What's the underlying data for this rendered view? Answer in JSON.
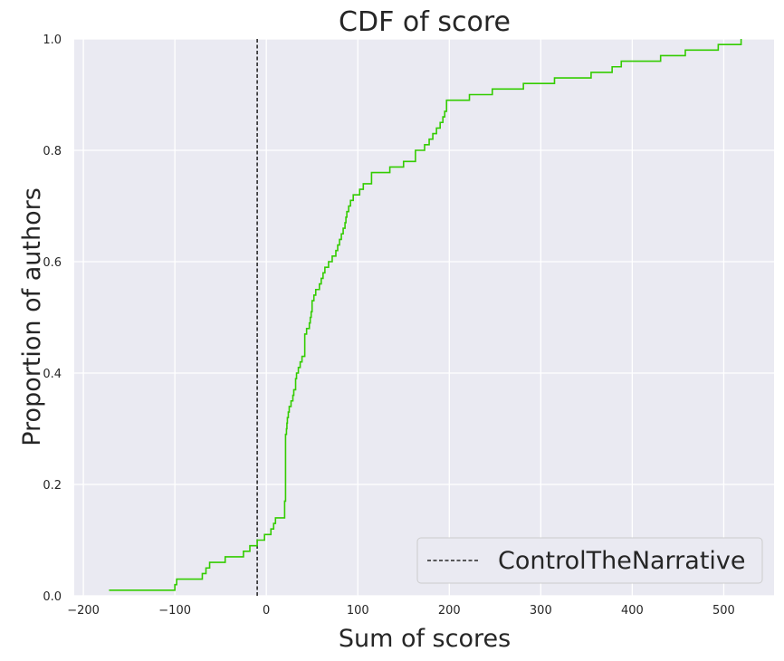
{
  "chart_data": {
    "type": "line",
    "title": "CDF of score",
    "xlabel": "Sum of scores",
    "ylabel": "Proportion of authors",
    "xlim": [
      -210,
      555
    ],
    "ylim": [
      0,
      1.0
    ],
    "xticks": [
      -200,
      -100,
      0,
      100,
      200,
      300,
      400,
      500
    ],
    "xtick_labels": [
      "−200",
      "−100",
      "0",
      "100",
      "200",
      "300",
      "400",
      "500"
    ],
    "yticks": [
      0.0,
      0.2,
      0.4,
      0.6,
      0.8,
      1.0
    ],
    "ytick_labels": [
      "0.0",
      "0.2",
      "0.4",
      "0.6",
      "0.8",
      "1.0"
    ],
    "grid": true,
    "legend_position": "lower-right",
    "series": [
      {
        "kind": "step-cdf",
        "color": "#33cc00",
        "x": [
          -172,
          -100,
          -98,
          -70,
          -66,
          -62,
          -45,
          -25,
          -18,
          -10,
          -2,
          5,
          8,
          10,
          20,
          21,
          22,
          22.5,
          23,
          24,
          25,
          27,
          29,
          30,
          32,
          33,
          35,
          37,
          39,
          42,
          44,
          47,
          48,
          49,
          50,
          52,
          54,
          58,
          60,
          62,
          64,
          68,
          72,
          76,
          78,
          80,
          82,
          84,
          86,
          87,
          88,
          90,
          92,
          95,
          102,
          106,
          115,
          135,
          150,
          163,
          173,
          178,
          182,
          186,
          190,
          193,
          195,
          197,
          222,
          247,
          281,
          315,
          355,
          378,
          388,
          431,
          458,
          494,
          519
        ],
        "y": [
          0.01,
          0.02,
          0.03,
          0.04,
          0.05,
          0.06,
          0.07,
          0.08,
          0.09,
          0.1,
          0.11,
          0.12,
          0.13,
          0.14,
          0.17,
          0.29,
          0.3,
          0.31,
          0.32,
          0.33,
          0.34,
          0.35,
          0.36,
          0.37,
          0.39,
          0.4,
          0.41,
          0.42,
          0.43,
          0.47,
          0.48,
          0.49,
          0.5,
          0.51,
          0.53,
          0.54,
          0.55,
          0.56,
          0.57,
          0.58,
          0.59,
          0.6,
          0.61,
          0.62,
          0.63,
          0.64,
          0.65,
          0.66,
          0.67,
          0.68,
          0.69,
          0.7,
          0.71,
          0.72,
          0.73,
          0.74,
          0.76,
          0.77,
          0.78,
          0.8,
          0.81,
          0.82,
          0.83,
          0.84,
          0.85,
          0.86,
          0.87,
          0.89,
          0.9,
          0.91,
          0.92,
          0.93,
          0.94,
          0.95,
          0.96,
          0.97,
          0.98,
          0.99,
          1.0
        ]
      }
    ],
    "reference_line": {
      "x": -10,
      "color": "#000000",
      "style": "dashed",
      "legend_label": "ControlTheNarrative"
    }
  }
}
